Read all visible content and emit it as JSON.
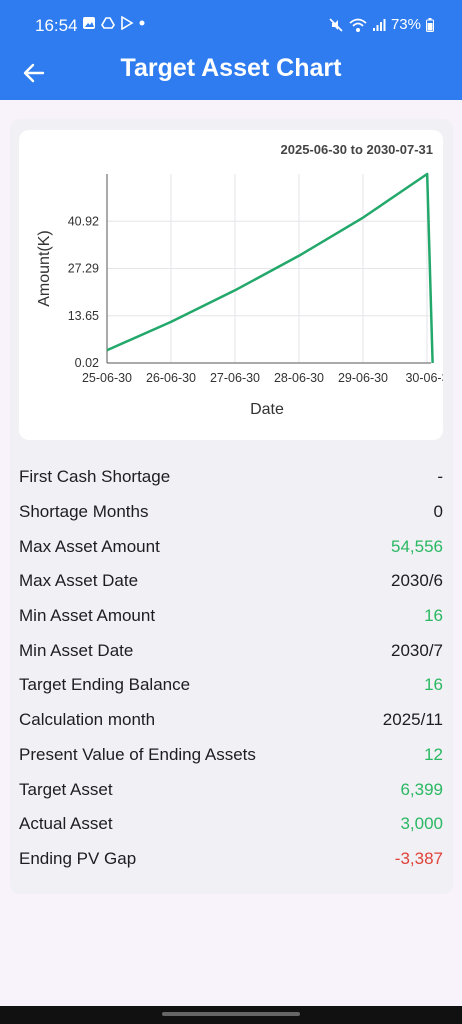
{
  "status": {
    "time": "16:54",
    "left_icons": [
      "image-icon",
      "drive-icon",
      "play-store-icon",
      "dot-icon"
    ],
    "right_icons": [
      "mute-icon",
      "wifi-icon",
      "signal-icon"
    ],
    "battery": "73%"
  },
  "app_bar": {
    "title": "Target Asset Chart"
  },
  "chart": {
    "range": "2025-06-30 to 2030-07-31"
  },
  "chart_data": {
    "type": "line",
    "title": "",
    "xlabel": "Date",
    "ylabel": "Amount(K)",
    "x_ticks": [
      "25-06-30",
      "26-06-30",
      "27-06-30",
      "28-06-30",
      "29-06-30",
      "30-06-3"
    ],
    "y_ticks": [
      "0.02",
      "13.65",
      "27.29",
      "40.92"
    ],
    "ylim": [
      0.02,
      54.56
    ],
    "series": [
      {
        "color": "#22a86a",
        "x": [
          "2025-06-30",
          "2026-06-30",
          "2027-06-30",
          "2028-06-30",
          "2029-06-30",
          "2030-06-30",
          "2030-07-31"
        ],
        "values": [
          3.7,
          11.9,
          21.0,
          31.0,
          42.0,
          54.56,
          0.016
        ]
      }
    ],
    "grid": true,
    "legend": "none"
  },
  "stats": [
    {
      "label": "First Cash Shortage",
      "value": "-",
      "tone": "neutral"
    },
    {
      "label": "Shortage Months",
      "value": "0",
      "tone": "neutral"
    },
    {
      "label": "Max Asset Amount",
      "value": "54,556",
      "tone": "positive"
    },
    {
      "label": "Max Asset Date",
      "value": "2030/6",
      "tone": "neutral"
    },
    {
      "label": "Min Asset Amount",
      "value": "16",
      "tone": "positive"
    },
    {
      "label": "Min Asset Date",
      "value": "2030/7",
      "tone": "neutral"
    },
    {
      "label": "Target Ending Balance",
      "value": "16",
      "tone": "positive"
    },
    {
      "label": "Calculation month",
      "value": "2025/11",
      "tone": "neutral"
    },
    {
      "label": "Present Value of Ending Assets",
      "value": "12",
      "tone": "positive"
    },
    {
      "label": "Target Asset",
      "value": "6,399",
      "tone": "positive"
    },
    {
      "label": "Actual Asset",
      "value": "3,000",
      "tone": "positive"
    },
    {
      "label": "Ending PV Gap",
      "value": "-3,387",
      "tone": "negative"
    }
  ]
}
